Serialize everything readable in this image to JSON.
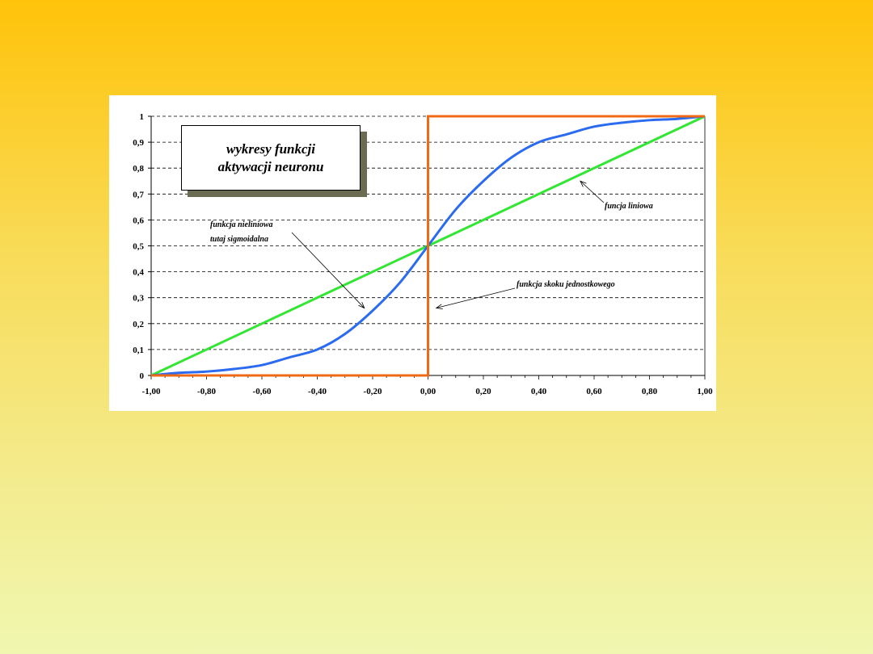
{
  "chart_data": {
    "type": "line",
    "title": [
      "wykresy funkcji",
      "aktywacji neuronu"
    ],
    "xlim": [
      -1.0,
      1.0
    ],
    "ylim": [
      0,
      1
    ],
    "grid": true,
    "x_ticks": [
      "-1,00",
      "-0,80",
      "-0,60",
      "-0,40",
      "-0,20",
      "0,00",
      "0,20",
      "0,40",
      "0,60",
      "0,80",
      "1,00"
    ],
    "y_ticks": [
      "0",
      "0,1",
      "0,2",
      "0,3",
      "0,4",
      "0,5",
      "0,6",
      "0,7",
      "0,8",
      "0,9",
      "1"
    ],
    "series": [
      {
        "color": "#2B6BF0",
        "x": [
          -1.0,
          -0.9,
          -0.8,
          -0.7,
          -0.6,
          -0.5,
          -0.4,
          -0.3,
          -0.2,
          -0.1,
          0.0,
          0.1,
          0.2,
          0.3,
          0.4,
          0.5,
          0.6,
          0.7,
          0.8,
          0.9,
          1.0
        ],
        "y": [
          0.0,
          0.01,
          0.015,
          0.025,
          0.04,
          0.07,
          0.1,
          0.16,
          0.25,
          0.36,
          0.5,
          0.64,
          0.75,
          0.84,
          0.9,
          0.93,
          0.96,
          0.975,
          0.985,
          0.99,
          1.0
        ]
      },
      {
        "color": "#33E633",
        "x": [
          -1.0,
          1.0
        ],
        "y": [
          0.0,
          1.0
        ]
      },
      {
        "color": "#F06A14",
        "x": [
          -1.0,
          0.0,
          0.0,
          1.0
        ],
        "y": [
          0.0,
          0.0,
          1.0,
          1.0
        ]
      }
    ],
    "annotations": [
      {
        "lines": [
          "funkcja nieliniowa",
          "tutaj sigmoidalna"
        ],
        "target": [
          -0.23,
          0.26
        ]
      },
      {
        "lines": [
          "funcja liniowa"
        ],
        "target": [
          0.55,
          0.75
        ]
      },
      {
        "lines": [
          "funkcja skoku jednostkowego"
        ],
        "target": [
          0.03,
          0.26
        ]
      }
    ]
  }
}
